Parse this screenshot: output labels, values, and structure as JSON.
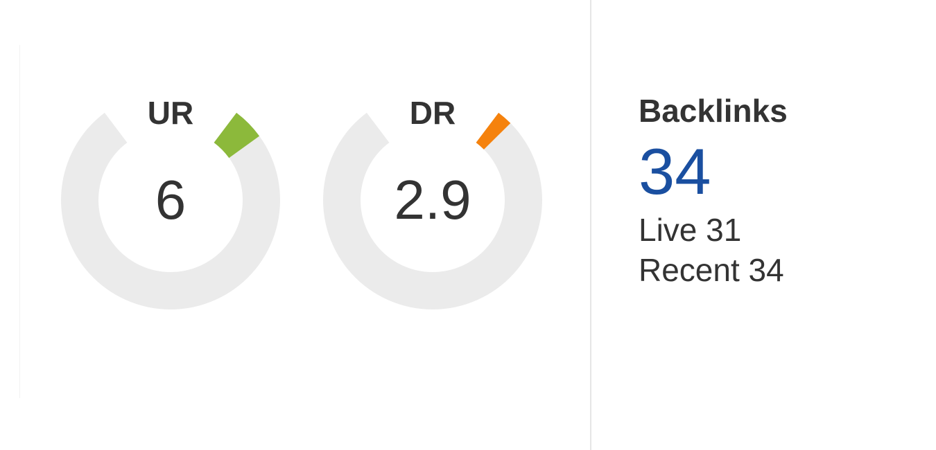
{
  "gauges": [
    {
      "label": "UR",
      "value": "6",
      "fraction": 0.06,
      "color": "#8cb93b"
    },
    {
      "label": "DR",
      "value": "2.9",
      "fraction": 0.029,
      "color": "#f5820d"
    }
  ],
  "track_color": "#ebebeb",
  "backlinks": {
    "title": "Backlinks",
    "count": "34",
    "live_label": "Live 31",
    "recent_label": "Recent 34",
    "count_color": "#1a4fa0"
  }
}
